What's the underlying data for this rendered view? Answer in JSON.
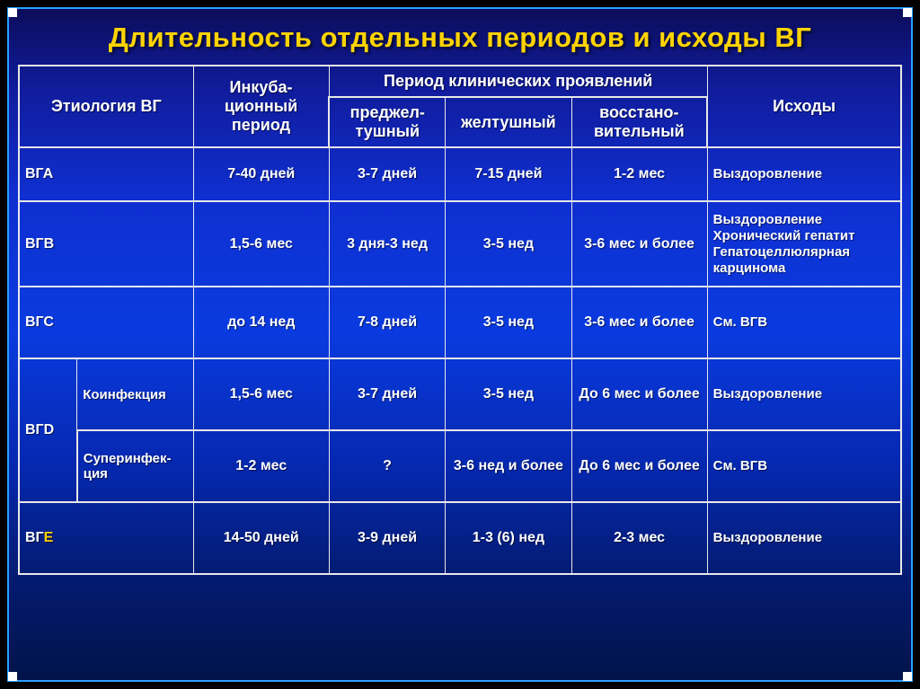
{
  "title": "Длительность отдельных периодов и исходы ВГ",
  "headers": {
    "etiology": "Этиология ВГ",
    "incubation": "Инкуба-\nционный\nпериод",
    "clinical_group": "Период клинических проявлений",
    "preicteric": "преджел-\nтушный",
    "icteric": "желтушный",
    "recovery": "восстано-\nвительный",
    "outcomes": "Исходы"
  },
  "rows": {
    "vga": {
      "label": "ВГА",
      "incubation": "7-40 дней",
      "preicteric": "3-7 дней",
      "icteric": "7-15 дней",
      "recovery": "1-2 мес",
      "outcome": "Выздоровление"
    },
    "vgb": {
      "label": "ВГВ",
      "incubation": "1,5-6 мес",
      "preicteric": "3 дня-3 нед",
      "icteric": "3-5 нед",
      "recovery": "3-6 мес и более",
      "outcome": "Выздоровление Хронический гепатит Гепатоцеллюлярная карцинома"
    },
    "vgc": {
      "label": "ВГС",
      "incubation": "до 14 нед",
      "preicteric": "7-8 дней",
      "icteric": "3-5 нед",
      "recovery": "3-6 мес и более",
      "outcome": "См. ВГВ"
    },
    "vgd": {
      "label": "ВГD",
      "co": {
        "sub": "Коинфекция",
        "incubation": "1,5-6 мес",
        "preicteric": "3-7 дней",
        "icteric": "3-5 нед",
        "recovery": "До 6 мес и более",
        "outcome": "Выздоровление"
      },
      "super": {
        "sub": "Суперинфек-ция",
        "incubation": "1-2 мес",
        "preicteric": "?",
        "icteric": "3-6 нед и более",
        "recovery": "До 6 мес и более",
        "outcome": "См. ВГВ"
      }
    },
    "vge": {
      "label_prefix": "ВГ",
      "label_e": "Е",
      "incubation": "14-50 дней",
      "preicteric": "3-9 дней",
      "icteric": "1-3 (6) нед",
      "recovery": "2-3 мес",
      "outcome": "Выздоровление"
    }
  },
  "style": {
    "accent_color": "#ffd400",
    "text_color": "#ffffff",
    "border_color": "#e8e8e8",
    "frame_border": "#2aa0ff",
    "title_fontsize": 31,
    "cell_fontsize": 16,
    "gradient_stops": [
      "#0b0d5a",
      "#101c9c",
      "#0f2fd0",
      "#0a3be0",
      "#0528b0",
      "#031b70",
      "#02134a"
    ]
  }
}
